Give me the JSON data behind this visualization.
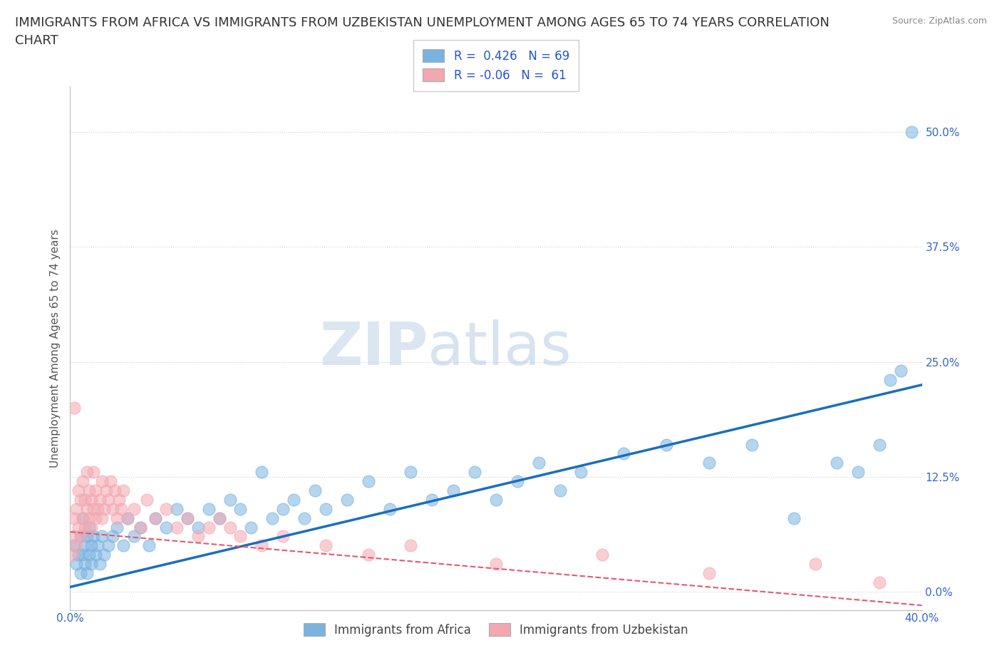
{
  "title": "IMMIGRANTS FROM AFRICA VS IMMIGRANTS FROM UZBEKISTAN UNEMPLOYMENT AMONG AGES 65 TO 74 YEARS CORRELATION\nCHART",
  "source": "Source: ZipAtlas.com",
  "ylabel": "Unemployment Among Ages 65 to 74 years",
  "xlabel_africa": "Immigrants from Africa",
  "xlabel_uzbekistan": "Immigrants from Uzbekistan",
  "xlim": [
    0.0,
    0.4
  ],
  "ylim": [
    -0.02,
    0.55
  ],
  "yticks": [
    0.0,
    0.125,
    0.25,
    0.375,
    0.5
  ],
  "ytick_labels": [
    "0.0%",
    "12.5%",
    "25.0%",
    "37.5%",
    "50.0%"
  ],
  "xticks": [
    0.0,
    0.1,
    0.2,
    0.3,
    0.4
  ],
  "xtick_labels": [
    "0.0%",
    "",
    "",
    "",
    "40.0%"
  ],
  "africa_R": 0.426,
  "africa_N": 69,
  "uzbekistan_R": -0.06,
  "uzbekistan_N": 61,
  "africa_color": "#7ab3e0",
  "africa_line_color": "#1a6fbd",
  "uzbekistan_color": "#f4a7b0",
  "uzbekistan_line_color": "#e05a6e",
  "watermark_zip": "ZIP",
  "watermark_atlas": "atlas",
  "background_color": "#ffffff",
  "grid_color": "#d0d0d0",
  "title_fontsize": 13,
  "axis_label_fontsize": 11,
  "tick_fontsize": 11,
  "legend_fontsize": 12,
  "africa_line_intercept": 0.005,
  "africa_line_slope": 0.55,
  "uzbekistan_line_intercept": 0.065,
  "uzbekistan_line_slope": -0.2,
  "africa_scatter_x": [
    0.002,
    0.003,
    0.004,
    0.005,
    0.005,
    0.006,
    0.006,
    0.007,
    0.007,
    0.008,
    0.008,
    0.009,
    0.009,
    0.01,
    0.01,
    0.011,
    0.012,
    0.013,
    0.014,
    0.015,
    0.016,
    0.018,
    0.02,
    0.022,
    0.025,
    0.027,
    0.03,
    0.033,
    0.037,
    0.04,
    0.045,
    0.05,
    0.055,
    0.06,
    0.065,
    0.07,
    0.075,
    0.08,
    0.085,
    0.09,
    0.095,
    0.1,
    0.105,
    0.11,
    0.115,
    0.12,
    0.13,
    0.14,
    0.15,
    0.16,
    0.17,
    0.18,
    0.19,
    0.2,
    0.21,
    0.22,
    0.23,
    0.24,
    0.26,
    0.28,
    0.3,
    0.32,
    0.34,
    0.36,
    0.37,
    0.38,
    0.385,
    0.39,
    0.395
  ],
  "africa_scatter_y": [
    0.05,
    0.03,
    0.04,
    0.06,
    0.02,
    0.04,
    0.08,
    0.05,
    0.03,
    0.06,
    0.02,
    0.04,
    0.07,
    0.05,
    0.03,
    0.06,
    0.04,
    0.05,
    0.03,
    0.06,
    0.04,
    0.05,
    0.06,
    0.07,
    0.05,
    0.08,
    0.06,
    0.07,
    0.05,
    0.08,
    0.07,
    0.09,
    0.08,
    0.07,
    0.09,
    0.08,
    0.1,
    0.09,
    0.07,
    0.13,
    0.08,
    0.09,
    0.1,
    0.08,
    0.11,
    0.09,
    0.1,
    0.12,
    0.09,
    0.13,
    0.1,
    0.11,
    0.13,
    0.1,
    0.12,
    0.14,
    0.11,
    0.13,
    0.15,
    0.16,
    0.14,
    0.16,
    0.08,
    0.14,
    0.13,
    0.16,
    0.23,
    0.24,
    0.5
  ],
  "uzbekistan_scatter_x": [
    0.001,
    0.002,
    0.002,
    0.003,
    0.003,
    0.004,
    0.004,
    0.005,
    0.005,
    0.006,
    0.006,
    0.007,
    0.007,
    0.008,
    0.008,
    0.009,
    0.009,
    0.01,
    0.01,
    0.011,
    0.011,
    0.012,
    0.012,
    0.013,
    0.014,
    0.015,
    0.015,
    0.016,
    0.017,
    0.018,
    0.019,
    0.02,
    0.021,
    0.022,
    0.023,
    0.024,
    0.025,
    0.027,
    0.03,
    0.033,
    0.036,
    0.04,
    0.045,
    0.05,
    0.055,
    0.06,
    0.065,
    0.07,
    0.075,
    0.08,
    0.09,
    0.1,
    0.12,
    0.14,
    0.16,
    0.2,
    0.25,
    0.3,
    0.35,
    0.38,
    0.002
  ],
  "uzbekistan_scatter_y": [
    0.04,
    0.06,
    0.08,
    0.05,
    0.09,
    0.07,
    0.11,
    0.06,
    0.1,
    0.08,
    0.12,
    0.07,
    0.1,
    0.09,
    0.13,
    0.08,
    0.11,
    0.07,
    0.1,
    0.09,
    0.13,
    0.08,
    0.11,
    0.09,
    0.1,
    0.08,
    0.12,
    0.09,
    0.11,
    0.1,
    0.12,
    0.09,
    0.11,
    0.08,
    0.1,
    0.09,
    0.11,
    0.08,
    0.09,
    0.07,
    0.1,
    0.08,
    0.09,
    0.07,
    0.08,
    0.06,
    0.07,
    0.08,
    0.07,
    0.06,
    0.05,
    0.06,
    0.05,
    0.04,
    0.05,
    0.03,
    0.04,
    0.02,
    0.03,
    0.01,
    0.2
  ]
}
